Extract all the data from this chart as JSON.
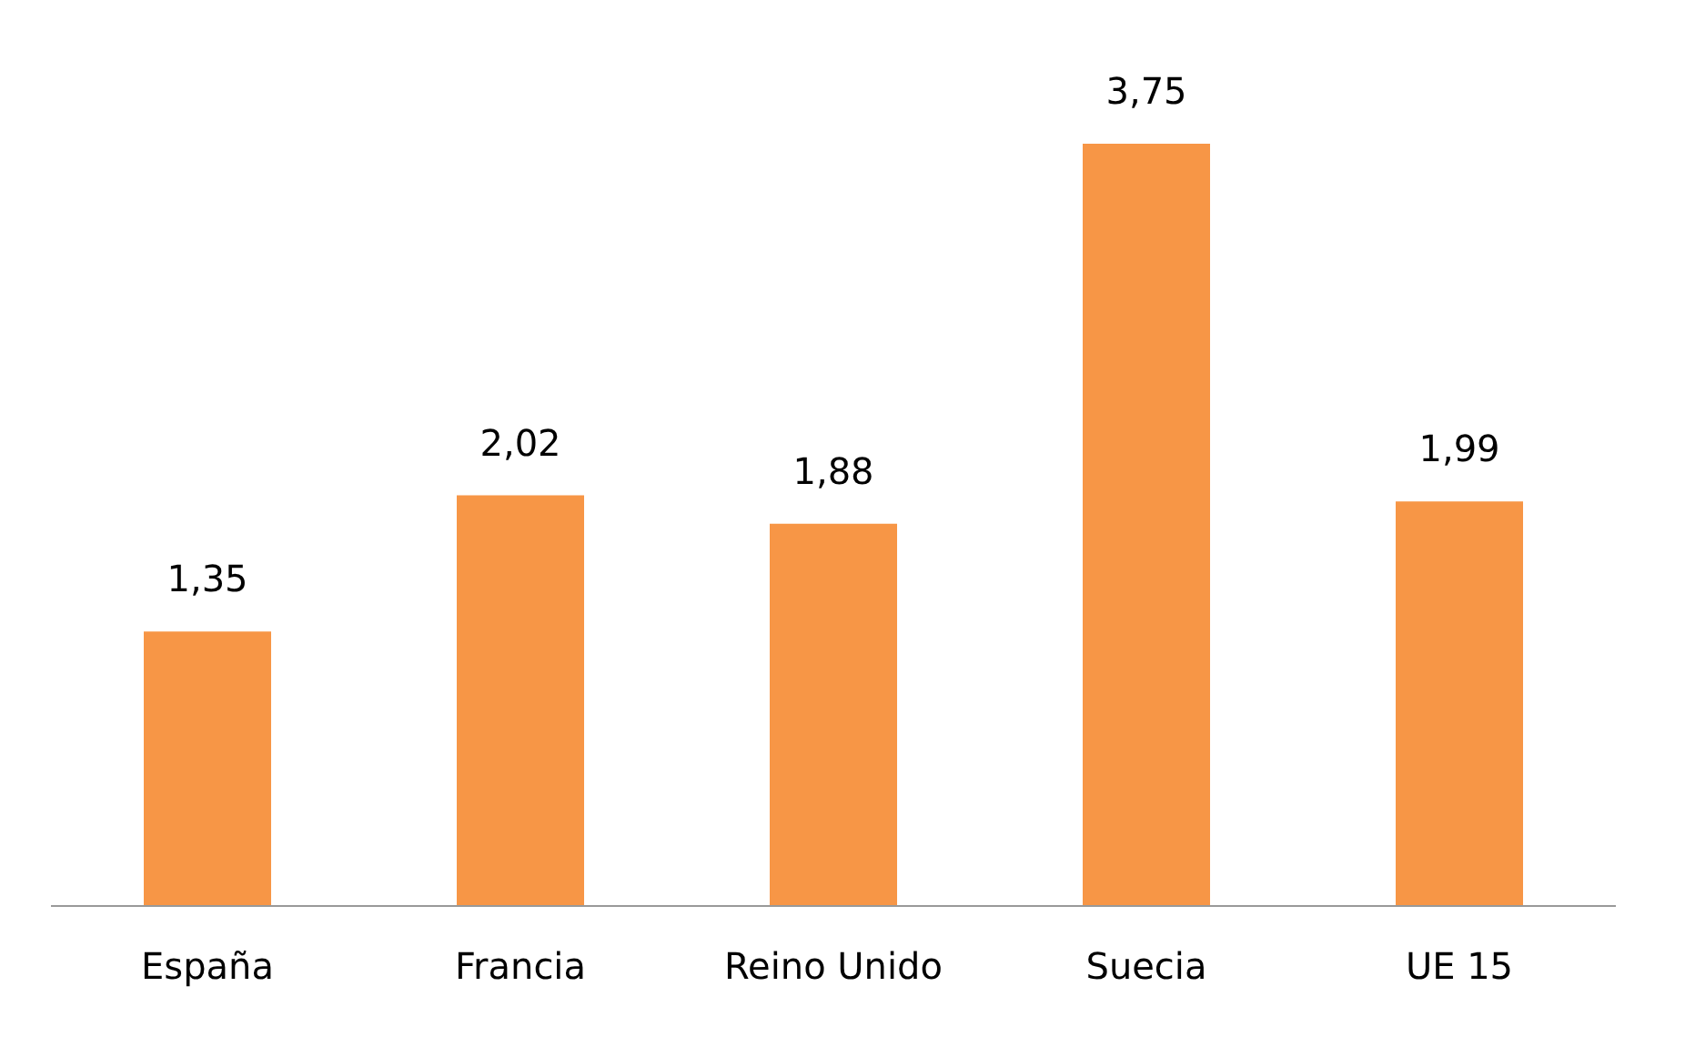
{
  "chart_data": {
    "type": "bar",
    "categories": [
      "España",
      "Francia",
      "Reino Unido",
      "Suecia",
      "UE 15"
    ],
    "values": [
      1.35,
      2.02,
      1.88,
      3.75,
      1.99
    ],
    "value_labels": [
      "1,35",
      "2,02",
      "1,88",
      "3,75",
      "1,99"
    ],
    "color": "#f79646"
  }
}
